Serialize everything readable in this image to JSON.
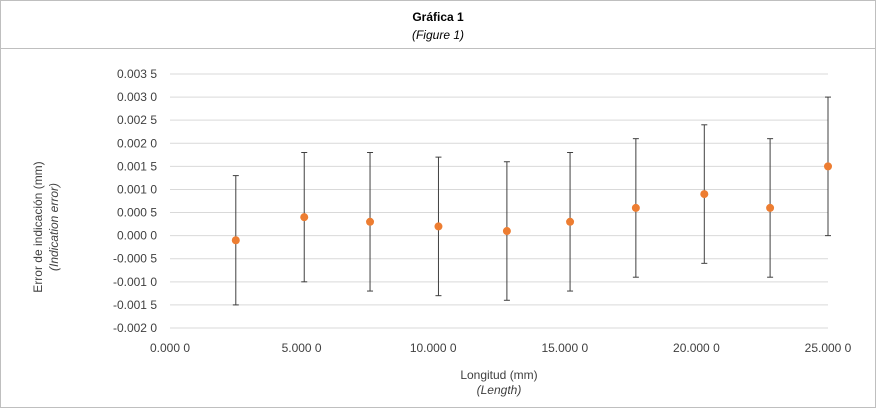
{
  "header": {
    "title": "Gráfica 1",
    "subtitle": "(Figure 1)"
  },
  "chart_data": {
    "type": "scatter",
    "title": "Gráfica 1",
    "subtitle": "(Figure 1)",
    "xlabel": "Longitud (mm)",
    "xlabel_translation": "(Length)",
    "ylabel": "Error de indicación (mm)",
    "ylabel_translation": "(Indication error)",
    "xlim": [
      0,
      25
    ],
    "ylim": [
      -0.002,
      0.0035
    ],
    "x_ticks": [
      0,
      5,
      10,
      15,
      20,
      25
    ],
    "x_tick_labels": [
      "0.000 0",
      "5.000 0",
      "10.000 0",
      "15.000 0",
      "20.000 0",
      "25.000 0"
    ],
    "y_ticks": [
      0.0035,
      0.003,
      0.0025,
      0.002,
      0.0015,
      0.001,
      0.0005,
      0,
      -0.0005,
      -0.001,
      -0.0015,
      -0.002
    ],
    "y_tick_labels": [
      "0.003 5",
      "0.003 0",
      "0.002 5",
      "0.002 0",
      "0.001 5",
      "0.001 0",
      "0.000 5",
      "0.000 0",
      "-0.000 5",
      "-0.001 0",
      "-0.001 5",
      "-0.002 0"
    ],
    "grid": "horizontal",
    "marker_color": "#ed7d31",
    "error_bar_color": "#404040",
    "gridline_color": "#d9d9d9",
    "points": [
      {
        "x": 2.5,
        "y": -0.0001,
        "err": 0.0014
      },
      {
        "x": 5.1,
        "y": 0.0004,
        "err": 0.0014
      },
      {
        "x": 7.6,
        "y": 0.0003,
        "err": 0.0015
      },
      {
        "x": 10.2,
        "y": 0.0002,
        "err": 0.0015
      },
      {
        "x": 12.8,
        "y": 0.0001,
        "err": 0.0015
      },
      {
        "x": 15.2,
        "y": 0.0003,
        "err": 0.0015
      },
      {
        "x": 17.7,
        "y": 0.0006,
        "err": 0.0015
      },
      {
        "x": 20.3,
        "y": 0.0009,
        "err": 0.0015
      },
      {
        "x": 22.8,
        "y": 0.0006,
        "err": 0.0015
      },
      {
        "x": 25.0,
        "y": 0.0015,
        "err": 0.0015
      }
    ]
  }
}
